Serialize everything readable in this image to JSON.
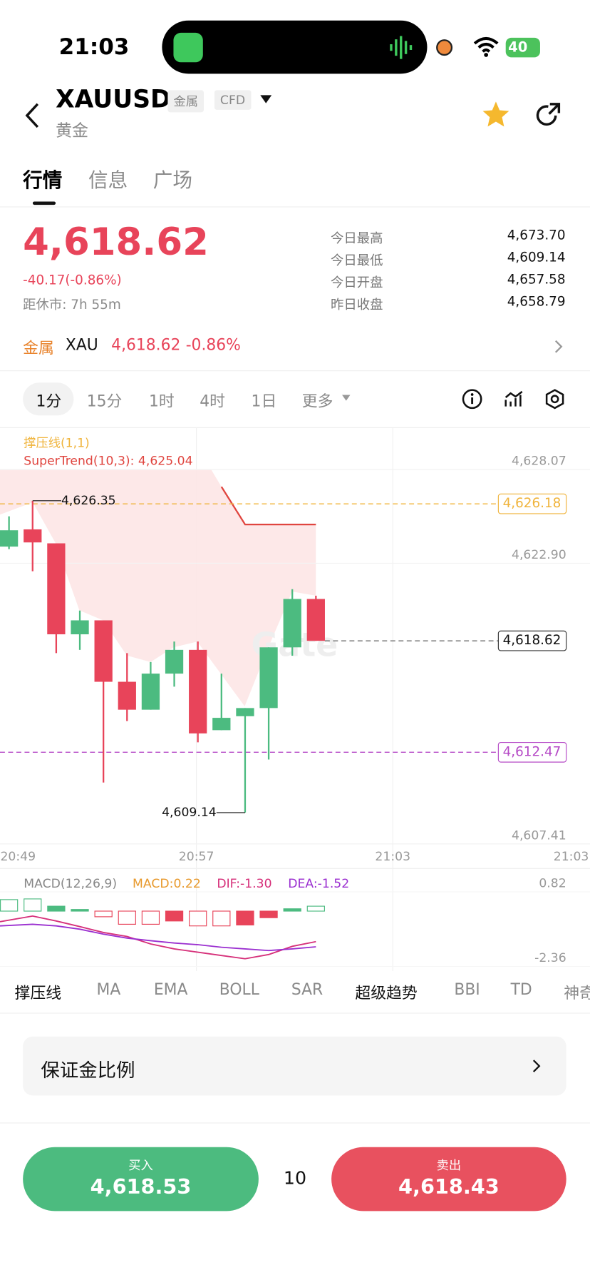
{
  "status_bar": {
    "time": "21:03",
    "battery": "40"
  },
  "header": {
    "symbol": "XAUUSD",
    "tags": [
      "金属",
      "CFD"
    ],
    "subtitle": "黄金"
  },
  "tabs": [
    "行情",
    "信息",
    "广场"
  ],
  "quote": {
    "price": "4,618.62",
    "change": "-40.17(-0.86%)",
    "close_time": "距休市: 7h 55m",
    "stats": [
      {
        "label": "今日最高",
        "value": "4,673.70"
      },
      {
        "label": "今日最低",
        "value": "4,609.14"
      },
      {
        "label": "今日开盘",
        "value": "4,657.58"
      },
      {
        "label": "昨日收盘",
        "value": "4,658.79"
      }
    ]
  },
  "related": {
    "category": "金属",
    "symbol": "XAU",
    "price": "4,618.62",
    "change": "-0.86%"
  },
  "intervals": [
    "1分",
    "15分",
    "1时",
    "4时",
    "1日",
    "更多"
  ],
  "chart_data": [
    {
      "type": "candlestick",
      "indicators": [
        "撑压线(1,1)",
        "SuperTrend(10,3): 4,625.04"
      ],
      "x_labels": [
        "20:49",
        "20:57",
        "21:03",
        "21:03"
      ],
      "open": [
        4623.82,
        4624.77,
        4624.0,
        4618.98,
        4619.75,
        4616.36,
        4614.82,
        4616.81,
        4618.12,
        4613.69,
        4614.46,
        4614.91,
        4618.26,
        4620.93
      ],
      "high": [
        4625.49,
        4626.35,
        4624.0,
        4620.29,
        4619.75,
        4617.94,
        4617.45,
        4618.58,
        4618.58,
        4616.81,
        4614.91,
        4618.26,
        4621.47,
        4621.11
      ],
      "low": [
        4623.68,
        4622.46,
        4617.94,
        4618.12,
        4610.8,
        4614.19,
        4614.82,
        4616.09,
        4613.02,
        4613.69,
        4609.14,
        4612.07,
        4617.8,
        4618.62
      ],
      "close": [
        4624.72,
        4624.05,
        4618.98,
        4619.75,
        4616.36,
        4614.82,
        4616.81,
        4618.12,
        4613.51,
        4614.37,
        4614.91,
        4618.26,
        4620.93,
        4618.62
      ],
      "up_color": "#4cbb80",
      "down_color": "#e8445a",
      "supertrend": {
        "color": "#e0453f",
        "values": [
          null,
          null,
          null,
          null,
          null,
          null,
          null,
          null,
          null,
          4627.12,
          4625.04,
          4625.04,
          4625.04,
          4625.04
        ]
      },
      "annotations": [
        {
          "value": 4626.35,
          "label": "4,626.35"
        },
        {
          "value": 4609.14,
          "label": "4,609.14"
        }
      ],
      "price_lines": [
        {
          "value": 4626.18,
          "label": "4,626.18",
          "color": "#f0b43c"
        },
        {
          "value": 4612.47,
          "label": "4,612.47",
          "color": "#b548c6"
        },
        {
          "value": 4618.62,
          "label": "4,618.62",
          "color": "#333333"
        }
      ],
      "ylim": [
        4607.41,
        4630.38
      ],
      "yticks": [
        {
          "value": 4628.07,
          "label": "4,628.07"
        },
        {
          "value": 4622.9,
          "label": "4,622.90"
        },
        {
          "value": 4607.41,
          "label": "4,607.41"
        }
      ]
    },
    {
      "type": "macd",
      "title": "MACD(12,26,9)",
      "series": [
        {
          "name": "MACD:0.22",
          "color": "#e89a2e",
          "values": [
            0.49,
            0.52,
            0.21,
            0.07,
            -0.24,
            -0.56,
            -0.56,
            -0.42,
            -0.63,
            -0.63,
            -0.59,
            -0.28,
            0.1,
            0.21
          ]
        },
        {
          "name": "DIF:-1.30",
          "color": "#d6307a",
          "values": [
            -0.45,
            -0.21,
            -0.42,
            -0.66,
            -0.91,
            -1.08,
            -1.4,
            -1.61,
            -1.75,
            -1.89,
            -2.03,
            -1.85,
            -1.5,
            -1.3
          ]
        },
        {
          "name": "DEA:-1.52",
          "color": "#9b30d0",
          "values": [
            -0.63,
            -0.56,
            -0.63,
            -0.77,
            -0.98,
            -1.15,
            -1.26,
            -1.36,
            -1.43,
            -1.54,
            -1.61,
            -1.68,
            -1.61,
            -1.52
          ]
        }
      ],
      "ylim": [
        -2.55,
        1.64
      ],
      "yticks": [
        0.82,
        -2.36
      ]
    }
  ],
  "indicator_tabs": [
    "撑压线",
    "MA",
    "EMA",
    "BOLL",
    "SAR",
    "超级趋势",
    "BBI",
    "TD",
    "神奇"
  ],
  "margin": {
    "label": "保证金比例"
  },
  "trade": {
    "buy": {
      "label": "买入",
      "price": "4,618.53"
    },
    "quantity": "10",
    "sell": {
      "label": "卖出",
      "price": "4,618.43"
    }
  }
}
